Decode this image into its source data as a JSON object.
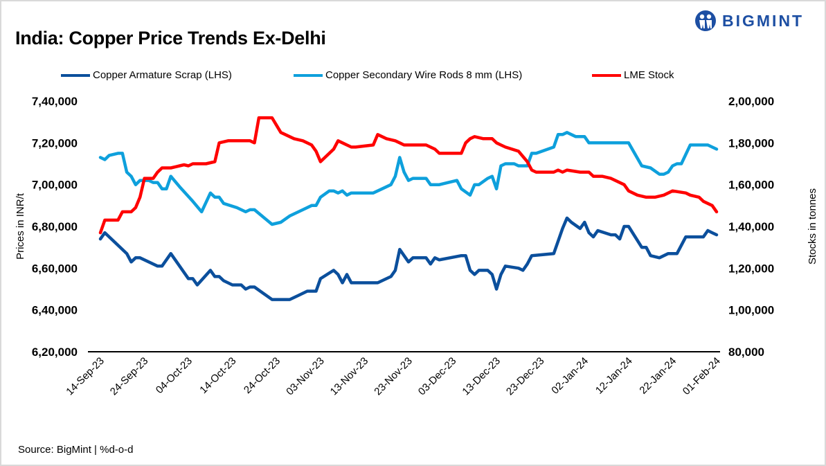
{
  "title": "India: Copper Price Trends Ex-Delhi",
  "logo_text": "BIGMINT",
  "source": "Source: BigMint | %d-o-d",
  "chart_data": {
    "type": "line",
    "title": "India: Copper Price Trends Ex-Delhi",
    "ylabel": "Prices in INR/t",
    "y2label": "Stocks in tonnes",
    "ylim": [
      620000,
      740000
    ],
    "y2lim": [
      80000,
      200000
    ],
    "xlim": [
      "2023-09-14",
      "2024-02-01"
    ],
    "grid": false,
    "legend": "top",
    "y_ticks": [
      "7,40,000",
      "7,20,000",
      "7,00,000",
      "6,80,000",
      "6,60,000",
      "6,40,000",
      "6,20,000"
    ],
    "y2_ticks": [
      "2,00,000",
      "1,80,000",
      "1,60,000",
      "1,40,000",
      "1,20,000",
      "1,00,000",
      "80,000"
    ],
    "x_ticks": [
      "14-Sep-23",
      "24-Sep-23",
      "04-Oct-23",
      "14-Oct-23",
      "24-Oct-23",
      "03-Nov-23",
      "13-Nov-23",
      "23-Nov-23",
      "03-Dec-23",
      "13-Dec-23",
      "23-Dec-23",
      "02-Jan-24",
      "12-Jan-24",
      "22-Jan-24",
      "01-Feb-24"
    ],
    "series": [
      {
        "name": "Copper Armature Scrap (LHS)",
        "axis": "left",
        "color": "#0B4F9C",
        "points": [
          [
            "2023-09-14",
            674000
          ],
          [
            "2023-09-15",
            677000
          ],
          [
            "2023-09-20",
            667000
          ],
          [
            "2023-09-21",
            663000
          ],
          [
            "2023-09-22",
            665000
          ],
          [
            "2023-09-23",
            665000
          ],
          [
            "2023-09-27",
            661000
          ],
          [
            "2023-09-28",
            661000
          ],
          [
            "2023-09-30",
            667000
          ],
          [
            "2023-10-04",
            655000
          ],
          [
            "2023-10-05",
            655000
          ],
          [
            "2023-10-06",
            652000
          ],
          [
            "2023-10-09",
            659000
          ],
          [
            "2023-10-10",
            656000
          ],
          [
            "2023-10-11",
            656000
          ],
          [
            "2023-10-12",
            654000
          ],
          [
            "2023-10-14",
            652000
          ],
          [
            "2023-10-16",
            652000
          ],
          [
            "2023-10-17",
            650000
          ],
          [
            "2023-10-18",
            651000
          ],
          [
            "2023-10-19",
            651000
          ],
          [
            "2023-10-23",
            645000
          ],
          [
            "2023-10-27",
            645000
          ],
          [
            "2023-10-29",
            647000
          ],
          [
            "2023-10-31",
            649000
          ],
          [
            "2023-11-02",
            649000
          ],
          [
            "2023-11-03",
            655000
          ],
          [
            "2023-11-06",
            659000
          ],
          [
            "2023-11-07",
            657000
          ],
          [
            "2023-11-08",
            653000
          ],
          [
            "2023-11-09",
            657000
          ],
          [
            "2023-11-10",
            653000
          ],
          [
            "2023-11-16",
            653000
          ],
          [
            "2023-11-19",
            656000
          ],
          [
            "2023-11-20",
            659000
          ],
          [
            "2023-11-21",
            669000
          ],
          [
            "2023-11-22",
            666000
          ],
          [
            "2023-11-23",
            663000
          ],
          [
            "2023-11-24",
            665000
          ],
          [
            "2023-11-27",
            665000
          ],
          [
            "2023-11-28",
            662000
          ],
          [
            "2023-11-29",
            665000
          ],
          [
            "2023-11-30",
            664000
          ],
          [
            "2023-12-05",
            666000
          ],
          [
            "2023-12-06",
            666000
          ],
          [
            "2023-12-07",
            659000
          ],
          [
            "2023-12-08",
            657000
          ],
          [
            "2023-12-09",
            659000
          ],
          [
            "2023-12-11",
            659000
          ],
          [
            "2023-12-12",
            657000
          ],
          [
            "2023-12-13",
            650000
          ],
          [
            "2023-12-14",
            657000
          ],
          [
            "2023-12-15",
            661000
          ],
          [
            "2023-12-18",
            660000
          ],
          [
            "2023-12-19",
            659000
          ],
          [
            "2023-12-20",
            662000
          ],
          [
            "2023-12-21",
            666000
          ],
          [
            "2023-12-26",
            667000
          ],
          [
            "2023-12-28",
            679000
          ],
          [
            "2023-12-29",
            684000
          ],
          [
            "2023-12-30",
            682000
          ],
          [
            "2024-01-01",
            679000
          ],
          [
            "2024-01-02",
            682000
          ],
          [
            "2024-01-03",
            677000
          ],
          [
            "2024-01-04",
            675000
          ],
          [
            "2024-01-05",
            678000
          ],
          [
            "2024-01-08",
            676000
          ],
          [
            "2024-01-09",
            676000
          ],
          [
            "2024-01-10",
            674000
          ],
          [
            "2024-01-11",
            680000
          ],
          [
            "2024-01-12",
            680000
          ],
          [
            "2024-01-15",
            670000
          ],
          [
            "2024-01-16",
            670000
          ],
          [
            "2024-01-17",
            666000
          ],
          [
            "2024-01-19",
            665000
          ],
          [
            "2024-01-21",
            667000
          ],
          [
            "2024-01-23",
            667000
          ],
          [
            "2024-01-25",
            675000
          ],
          [
            "2024-01-29",
            675000
          ],
          [
            "2024-01-30",
            678000
          ],
          [
            "2024-01-31",
            677000
          ],
          [
            "2024-02-01",
            676000
          ]
        ]
      },
      {
        "name": "Copper Secondary Wire Rods 8 mm (LHS)",
        "axis": "left",
        "color": "#0EA0DC",
        "points": [
          [
            "2023-09-14",
            713000
          ],
          [
            "2023-09-15",
            712000
          ],
          [
            "2023-09-16",
            714000
          ],
          [
            "2023-09-18",
            715000
          ],
          [
            "2023-09-19",
            715000
          ],
          [
            "2023-09-20",
            706000
          ],
          [
            "2023-09-21",
            704000
          ],
          [
            "2023-09-22",
            700000
          ],
          [
            "2023-09-23",
            702000
          ],
          [
            "2023-09-24",
            702000
          ],
          [
            "2023-09-25",
            702000
          ],
          [
            "2023-09-26",
            701000
          ],
          [
            "2023-09-27",
            701000
          ],
          [
            "2023-09-28",
            698000
          ],
          [
            "2023-09-29",
            698000
          ],
          [
            "2023-09-30",
            704000
          ],
          [
            "2023-10-02",
            699000
          ],
          [
            "2023-10-05",
            692000
          ],
          [
            "2023-10-07",
            687000
          ],
          [
            "2023-10-09",
            696000
          ],
          [
            "2023-10-10",
            694000
          ],
          [
            "2023-10-11",
            694000
          ],
          [
            "2023-10-12",
            691000
          ],
          [
            "2023-10-15",
            689000
          ],
          [
            "2023-10-17",
            687000
          ],
          [
            "2023-10-18",
            688000
          ],
          [
            "2023-10-19",
            688000
          ],
          [
            "2023-10-23",
            681000
          ],
          [
            "2023-10-25",
            682000
          ],
          [
            "2023-10-27",
            685000
          ],
          [
            "2023-10-30",
            688000
          ],
          [
            "2023-11-01",
            690000
          ],
          [
            "2023-11-02",
            690000
          ],
          [
            "2023-11-03",
            694000
          ],
          [
            "2023-11-05",
            697000
          ],
          [
            "2023-11-06",
            697000
          ],
          [
            "2023-11-07",
            696000
          ],
          [
            "2023-11-08",
            697000
          ],
          [
            "2023-11-09",
            695000
          ],
          [
            "2023-11-10",
            696000
          ],
          [
            "2023-11-15",
            696000
          ],
          [
            "2023-11-17",
            698000
          ],
          [
            "2023-11-19",
            700000
          ],
          [
            "2023-11-20",
            704000
          ],
          [
            "2023-11-21",
            713000
          ],
          [
            "2023-11-22",
            706000
          ],
          [
            "2023-11-23",
            702000
          ],
          [
            "2023-11-24",
            703000
          ],
          [
            "2023-11-27",
            703000
          ],
          [
            "2023-11-28",
            700000
          ],
          [
            "2023-11-30",
            700000
          ],
          [
            "2023-12-04",
            702000
          ],
          [
            "2023-12-05",
            698000
          ],
          [
            "2023-12-07",
            695000
          ],
          [
            "2023-12-08",
            700000
          ],
          [
            "2023-12-09",
            700000
          ],
          [
            "2023-12-11",
            703000
          ],
          [
            "2023-12-12",
            704000
          ],
          [
            "2023-12-13",
            698000
          ],
          [
            "2023-12-14",
            709000
          ],
          [
            "2023-12-15",
            710000
          ],
          [
            "2023-12-17",
            710000
          ],
          [
            "2023-12-18",
            709000
          ],
          [
            "2023-12-20",
            709000
          ],
          [
            "2023-12-21",
            715000
          ],
          [
            "2023-12-22",
            715000
          ],
          [
            "2023-12-26",
            718000
          ],
          [
            "2023-12-27",
            724000
          ],
          [
            "2023-12-28",
            724000
          ],
          [
            "2023-12-29",
            725000
          ],
          [
            "2023-12-31",
            723000
          ],
          [
            "2024-01-02",
            723000
          ],
          [
            "2024-01-03",
            720000
          ],
          [
            "2024-01-12",
            720000
          ],
          [
            "2024-01-15",
            709000
          ],
          [
            "2024-01-17",
            708000
          ],
          [
            "2024-01-19",
            705000
          ],
          [
            "2024-01-20",
            705000
          ],
          [
            "2024-01-21",
            706000
          ],
          [
            "2024-01-22",
            709000
          ],
          [
            "2024-01-23",
            710000
          ],
          [
            "2024-01-24",
            710000
          ],
          [
            "2024-01-26",
            719000
          ],
          [
            "2024-01-30",
            719000
          ],
          [
            "2024-01-31",
            718000
          ],
          [
            "2024-02-01",
            717000
          ]
        ]
      },
      {
        "name": "LME Stock",
        "axis": "right",
        "color": "#FF0000",
        "points": [
          [
            "2023-09-14",
            137000
          ],
          [
            "2023-09-15",
            143000
          ],
          [
            "2023-09-18",
            143000
          ],
          [
            "2023-09-19",
            147000
          ],
          [
            "2023-09-20",
            147000
          ],
          [
            "2023-09-21",
            147000
          ],
          [
            "2023-09-22",
            149000
          ],
          [
            "2023-09-23",
            154000
          ],
          [
            "2023-09-24",
            163000
          ],
          [
            "2023-09-25",
            163000
          ],
          [
            "2023-09-26",
            163000
          ],
          [
            "2023-09-27",
            166000
          ],
          [
            "2023-09-28",
            168000
          ],
          [
            "2023-09-30",
            168000
          ],
          [
            "2023-10-02",
            169000
          ],
          [
            "2023-10-03",
            169500
          ],
          [
            "2023-10-04",
            169000
          ],
          [
            "2023-10-05",
            170000
          ],
          [
            "2023-10-07",
            170000
          ],
          [
            "2023-10-08",
            170000
          ],
          [
            "2023-10-10",
            171000
          ],
          [
            "2023-10-11",
            180000
          ],
          [
            "2023-10-13",
            181000
          ],
          [
            "2023-10-17",
            181000
          ],
          [
            "2023-10-18",
            181000
          ],
          [
            "2023-10-19",
            180000
          ],
          [
            "2023-10-20",
            192000
          ],
          [
            "2023-10-22",
            192000
          ],
          [
            "2023-10-23",
            192000
          ],
          [
            "2023-10-25",
            185000
          ],
          [
            "2023-10-28",
            182000
          ],
          [
            "2023-10-30",
            181000
          ],
          [
            "2023-11-01",
            179000
          ],
          [
            "2023-11-02",
            176000
          ],
          [
            "2023-11-03",
            171000
          ],
          [
            "2023-11-06",
            177000
          ],
          [
            "2023-11-07",
            181000
          ],
          [
            "2023-11-08",
            180000
          ],
          [
            "2023-11-09",
            179000
          ],
          [
            "2023-11-10",
            178000
          ],
          [
            "2023-11-11",
            178000
          ],
          [
            "2023-11-15",
            179000
          ],
          [
            "2023-11-16",
            184000
          ],
          [
            "2023-11-18",
            182000
          ],
          [
            "2023-11-20",
            181000
          ],
          [
            "2023-11-21",
            180000
          ],
          [
            "2023-11-22",
            179000
          ],
          [
            "2023-11-23",
            179000
          ],
          [
            "2023-11-24",
            179000
          ],
          [
            "2023-11-27",
            179000
          ],
          [
            "2023-11-29",
            177000
          ],
          [
            "2023-11-30",
            175000
          ],
          [
            "2023-12-04",
            175000
          ],
          [
            "2023-12-05",
            175000
          ],
          [
            "2023-12-06",
            180000
          ],
          [
            "2023-12-07",
            182000
          ],
          [
            "2023-12-08",
            183000
          ],
          [
            "2023-12-10",
            182000
          ],
          [
            "2023-12-12",
            182000
          ],
          [
            "2023-12-13",
            180000
          ],
          [
            "2023-12-14",
            179000
          ],
          [
            "2023-12-15",
            178000
          ],
          [
            "2023-12-18",
            176000
          ],
          [
            "2023-12-20",
            171000
          ],
          [
            "2023-12-21",
            167000
          ],
          [
            "2023-12-22",
            166000
          ],
          [
            "2023-12-26",
            166000
          ],
          [
            "2023-12-27",
            167000
          ],
          [
            "2023-12-28",
            166000
          ],
          [
            "2023-12-29",
            167000
          ],
          [
            "2024-01-01",
            166000
          ],
          [
            "2024-01-02",
            166000
          ],
          [
            "2024-01-03",
            166000
          ],
          [
            "2024-01-04",
            164000
          ],
          [
            "2024-01-06",
            164000
          ],
          [
            "2024-01-08",
            163000
          ],
          [
            "2024-01-11",
            160000
          ],
          [
            "2024-01-12",
            157000
          ],
          [
            "2024-01-14",
            155000
          ],
          [
            "2024-01-16",
            154000
          ],
          [
            "2024-01-18",
            154000
          ],
          [
            "2024-01-20",
            155000
          ],
          [
            "2024-01-22",
            157000
          ],
          [
            "2024-01-25",
            156000
          ],
          [
            "2024-01-26",
            155000
          ],
          [
            "2024-01-28",
            154000
          ],
          [
            "2024-01-29",
            152000
          ],
          [
            "2024-01-31",
            150000
          ],
          [
            "2024-02-01",
            147000
          ]
        ]
      }
    ]
  }
}
